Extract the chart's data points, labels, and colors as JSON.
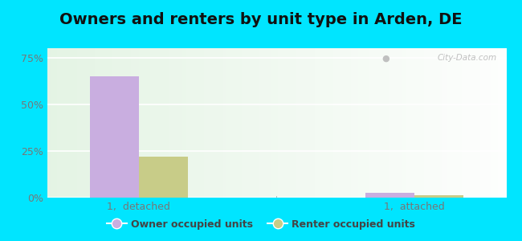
{
  "title": "Owners and renters by unit type in Arden, DE",
  "categories": [
    "1,  detached",
    "1,  attached"
  ],
  "owner_values": [
    65.0,
    2.5
  ],
  "renter_values": [
    22.0,
    1.5
  ],
  "owner_color": "#c9aee0",
  "renter_color": "#c8cc88",
  "bar_width": 0.32,
  "ylim": [
    0,
    80
  ],
  "yticks": [
    0,
    25,
    50,
    75
  ],
  "yticklabels": [
    "0%",
    "25%",
    "50%",
    "75%"
  ],
  "legend_owner": "Owner occupied units",
  "legend_renter": "Renter occupied units",
  "bg_outer": "#00e5ff",
  "watermark": "City-Data.com",
  "title_fontsize": 14,
  "tick_fontsize": 9,
  "legend_fontsize": 9
}
